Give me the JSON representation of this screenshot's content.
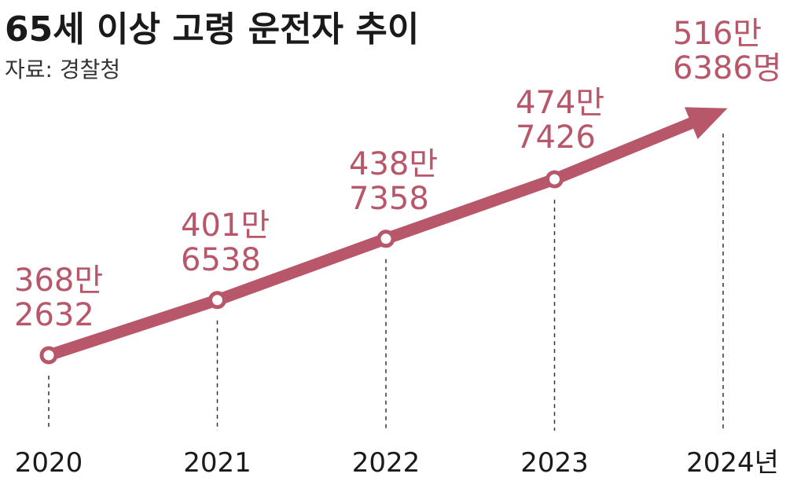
{
  "title": "65세 이상 고령 운전자 추이",
  "source": "자료: 경찰청",
  "colors": {
    "line": "#b8566a",
    "text": "#1a1a1a",
    "grid": "#333333"
  },
  "chart_data": {
    "type": "line",
    "title": "65세 이상 고령 운전자 추이",
    "categories": [
      "2020",
      "2021",
      "2022",
      "2023",
      "2024년"
    ],
    "values": [
      3682632,
      4016538,
      4387358,
      4747426,
      5166386
    ],
    "value_labels": [
      [
        "368만",
        "2632"
      ],
      [
        "401만",
        "6538"
      ],
      [
        "438만",
        "7358"
      ],
      [
        "474만",
        "7426"
      ],
      [
        "516만",
        "6386명"
      ]
    ],
    "last_point_style": "arrow",
    "grid": "dashed vertical drop lines"
  }
}
